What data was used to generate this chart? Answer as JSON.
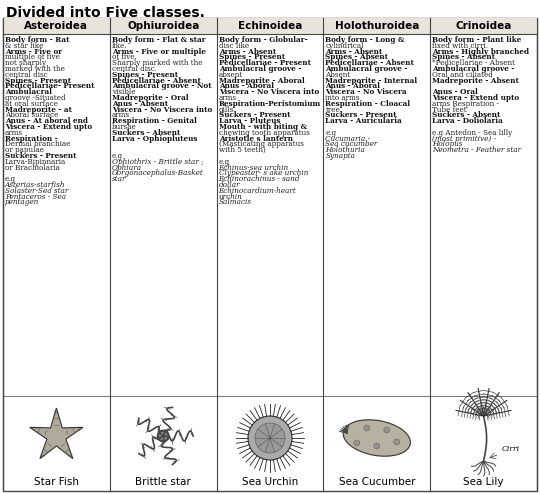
{
  "title": "Divided into Five classes.",
  "columns": [
    "Asteroidea",
    "Ophiuroidea",
    "Echinoidea",
    "Holothuroidea",
    "Crinoidea"
  ],
  "content": [
    "Body form - Rat\n& star like\nArms - Five or\nmultiple of five\nnot sharply\nmarked with the\ncentral disc\nSpines - Present\nPedicellariae- Present\nAmbulacral\ngroove -Situated\nat oral surface\nMadreporite - at\nAboral surface\nAnus - At aboral end\nViscera - Extend upto\narms\nRespiration -\nDermal branchiae\nor papulae\nSuckers - Present\nLarva-Bipinnaria\nor Brachiolaria\n\ne.g\nAsterias-starfish\nSolaster-Sea star\nPentaceros - Sea\npentagen",
    "Body form - Flat & star\nlike.\nArms - Five or multiple\nof five.\nSharply marked with the\ncentral disc.\nSpines - Present\nPedicellariae - Absent\nAmbulacral groove - Not\nvisible\nMadreporite - Oral\nAnus - Absent\nViscera - No Viscera into\narms\nRespiration - Genital\nbursae\nSuckers - Absent\nLarva - Ophiopluteus\n\n\ne.g\nOphiothrix - Brittle star ;\nOphiura\nGorgonacephalus-Basket\nstar",
    "Body form - Globular-\ndisc like\nArms - Absent\nSpines - Present\nPedicellariae - Present\nAmbulacral groove -\nabsent\nMadreporite - Aboral\nAnus - Aboral\nViscera - No Viscera into\narms\nRespiration-Peristomium\ngills\nSuckers - Present\nLarva - Pluteus\nMouth - with biting &\nchewing tooth apparatus\nAristotle s lantern\n(Masticating apparatus\nwith 5 teeth)\n\ne.g\nEchinus-sea urchin\nClypeaster- s ake urchin\nEchinorachinus - sand\ndollar\nEchinocardium-heart\nurchin\nSalmacis",
    "Body form - Long &\ncylindrical\nArms - Absent\nSpines - Absent\nPedicellariae - Absent\nAmbulacral groove -\nAbsent\nMadreporite - Internal\nAnus - Aboral\nViscera - No Viscera\ninto arms\nRespiration - Cloacal\ntree\nSuckers - Present\nLarva - Auricularia\n\ne.g\nCucumaria -\nSea cucumber\nHolothuria\nSynapta",
    "Body form - Plant like\nfixed with cirri.\nArms - Highly branched\nSpines - Absent\n*Pedicellariae - Absent\nAmbulacral groove -\nOral and ciliated\nMadreporite - Absent\n\nAnus - Oral\nViscera - Extend upto\narms Respiration -\nTube feet\nSuckers - Absent\nLarva - Doliolaria\n\ne.g Antedon - Sea lilly\n(most primitive) -\nHolopus\nNeometra - Feather star"
  ],
  "image_labels": [
    "Star Fish",
    "Brittle star",
    "Sea Urchin",
    "Sea Cucumber",
    "Sea Lily"
  ],
  "bold_starts": [
    "Body form",
    "Arms -",
    "Spines -",
    "Pedicellariae",
    "Ambulacral",
    "Madreporite",
    "Anus -",
    "Viscera -",
    "Respiration",
    "Suckers -",
    "Larva -",
    "Mouth -",
    "Aristotle"
  ],
  "bg_color": "#ffffff",
  "header_bg": "#e8e4dc",
  "border_color": "#444444",
  "title_fontsize": 10,
  "header_fontsize": 7.5,
  "content_fontsize": 5.2,
  "label_fontsize": 7.5
}
